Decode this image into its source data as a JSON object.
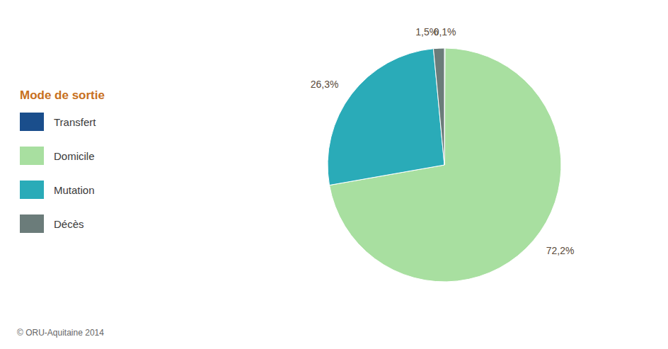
{
  "chart_data": {
    "type": "pie",
    "categories": [
      "Transfert",
      "Domicile",
      "Mutation",
      "Décès"
    ],
    "values": [
      0.1,
      72.2,
      26.3,
      1.5
    ],
    "value_labels": [
      "0,1%",
      "72,2%",
      "26,3%",
      "1,5%"
    ],
    "colors": [
      "#1a4e8c",
      "#a8dfa0",
      "#2aabb8",
      "#6b7c7a"
    ],
    "data_labels": true,
    "legend": "left",
    "legend_title": "Mode de sortie",
    "annotations": [
      "© ORU-Aquitaine 2014"
    ]
  }
}
